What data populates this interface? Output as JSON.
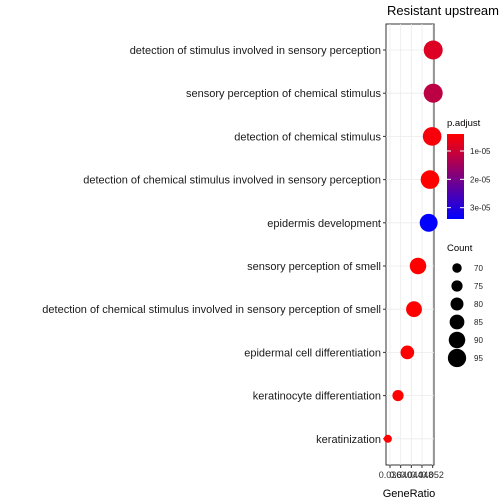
{
  "chart_data": {
    "type": "scatter",
    "title": "Resistant upstream",
    "xlabel": "GeneRatio",
    "ylabel": "",
    "xlim": [
      0.0345,
      0.0525
    ],
    "x_ticks": [
      0.036,
      0.04,
      0.044,
      0.048,
      0.052
    ],
    "x_tick_labels": [
      "0.036",
      "0.040",
      "0.044",
      "0.048",
      "0.052"
    ],
    "categories": [
      "detection of stimulus involved in sensory perception",
      "sensory perception of chemical stimulus",
      "detection of chemical stimulus",
      "detection of chemical stimulus involved in sensory perception",
      "epidermis development",
      "sensory perception of smell",
      "detection of chemical stimulus involved in sensory perception of smell",
      "epidermal cell differentiation",
      "keratinocyte differentiation",
      "keratinization"
    ],
    "points": [
      {
        "term": "detection of stimulus involved in sensory perception",
        "gene_ratio": 0.0522,
        "count": 97,
        "p_adjust": 8e-06
      },
      {
        "term": "sensory perception of chemical stimulus",
        "gene_ratio": 0.0522,
        "count": 97,
        "p_adjust": 1.2e-05
      },
      {
        "term": "detection of chemical stimulus",
        "gene_ratio": 0.0518,
        "count": 96,
        "p_adjust": 5e-06
      },
      {
        "term": "detection of chemical stimulus involved in sensory perception",
        "gene_ratio": 0.051,
        "count": 96,
        "p_adjust": 4e-06
      },
      {
        "term": "epidermis development",
        "gene_ratio": 0.0505,
        "count": 94,
        "p_adjust": 3.4e-05
      },
      {
        "term": "sensory perception of smell",
        "gene_ratio": 0.0465,
        "count": 90,
        "p_adjust": 4e-06
      },
      {
        "term": "detection of chemical stimulus involved in sensory perception of smell",
        "gene_ratio": 0.045,
        "count": 88,
        "p_adjust": 4e-06
      },
      {
        "term": "epidermal cell differentiation",
        "gene_ratio": 0.0425,
        "count": 82,
        "p_adjust": 4e-06
      },
      {
        "term": "keratinocyte differentiation",
        "gene_ratio": 0.039,
        "count": 75,
        "p_adjust": 4e-06
      },
      {
        "term": "keratinization",
        "gene_ratio": 0.0352,
        "count": 66,
        "p_adjust": 4e-06
      }
    ],
    "color_legend": {
      "title": "p.adjust",
      "range": [
        4e-06,
        3.4e-05
      ],
      "ticks": [
        1e-05,
        2e-05,
        3e-05
      ],
      "tick_labels": [
        "1e-05",
        "2e-05",
        "3e-05"
      ],
      "low_color": "#ff0000",
      "high_color": "#0000ff"
    },
    "size_legend": {
      "title": "Count",
      "values": [
        70,
        75,
        80,
        85,
        90,
        95
      ],
      "labels": [
        "70",
        "75",
        "80",
        "85",
        "90",
        "95"
      ],
      "range": [
        66,
        97
      ]
    },
    "grid": true,
    "legend_position": "right"
  }
}
